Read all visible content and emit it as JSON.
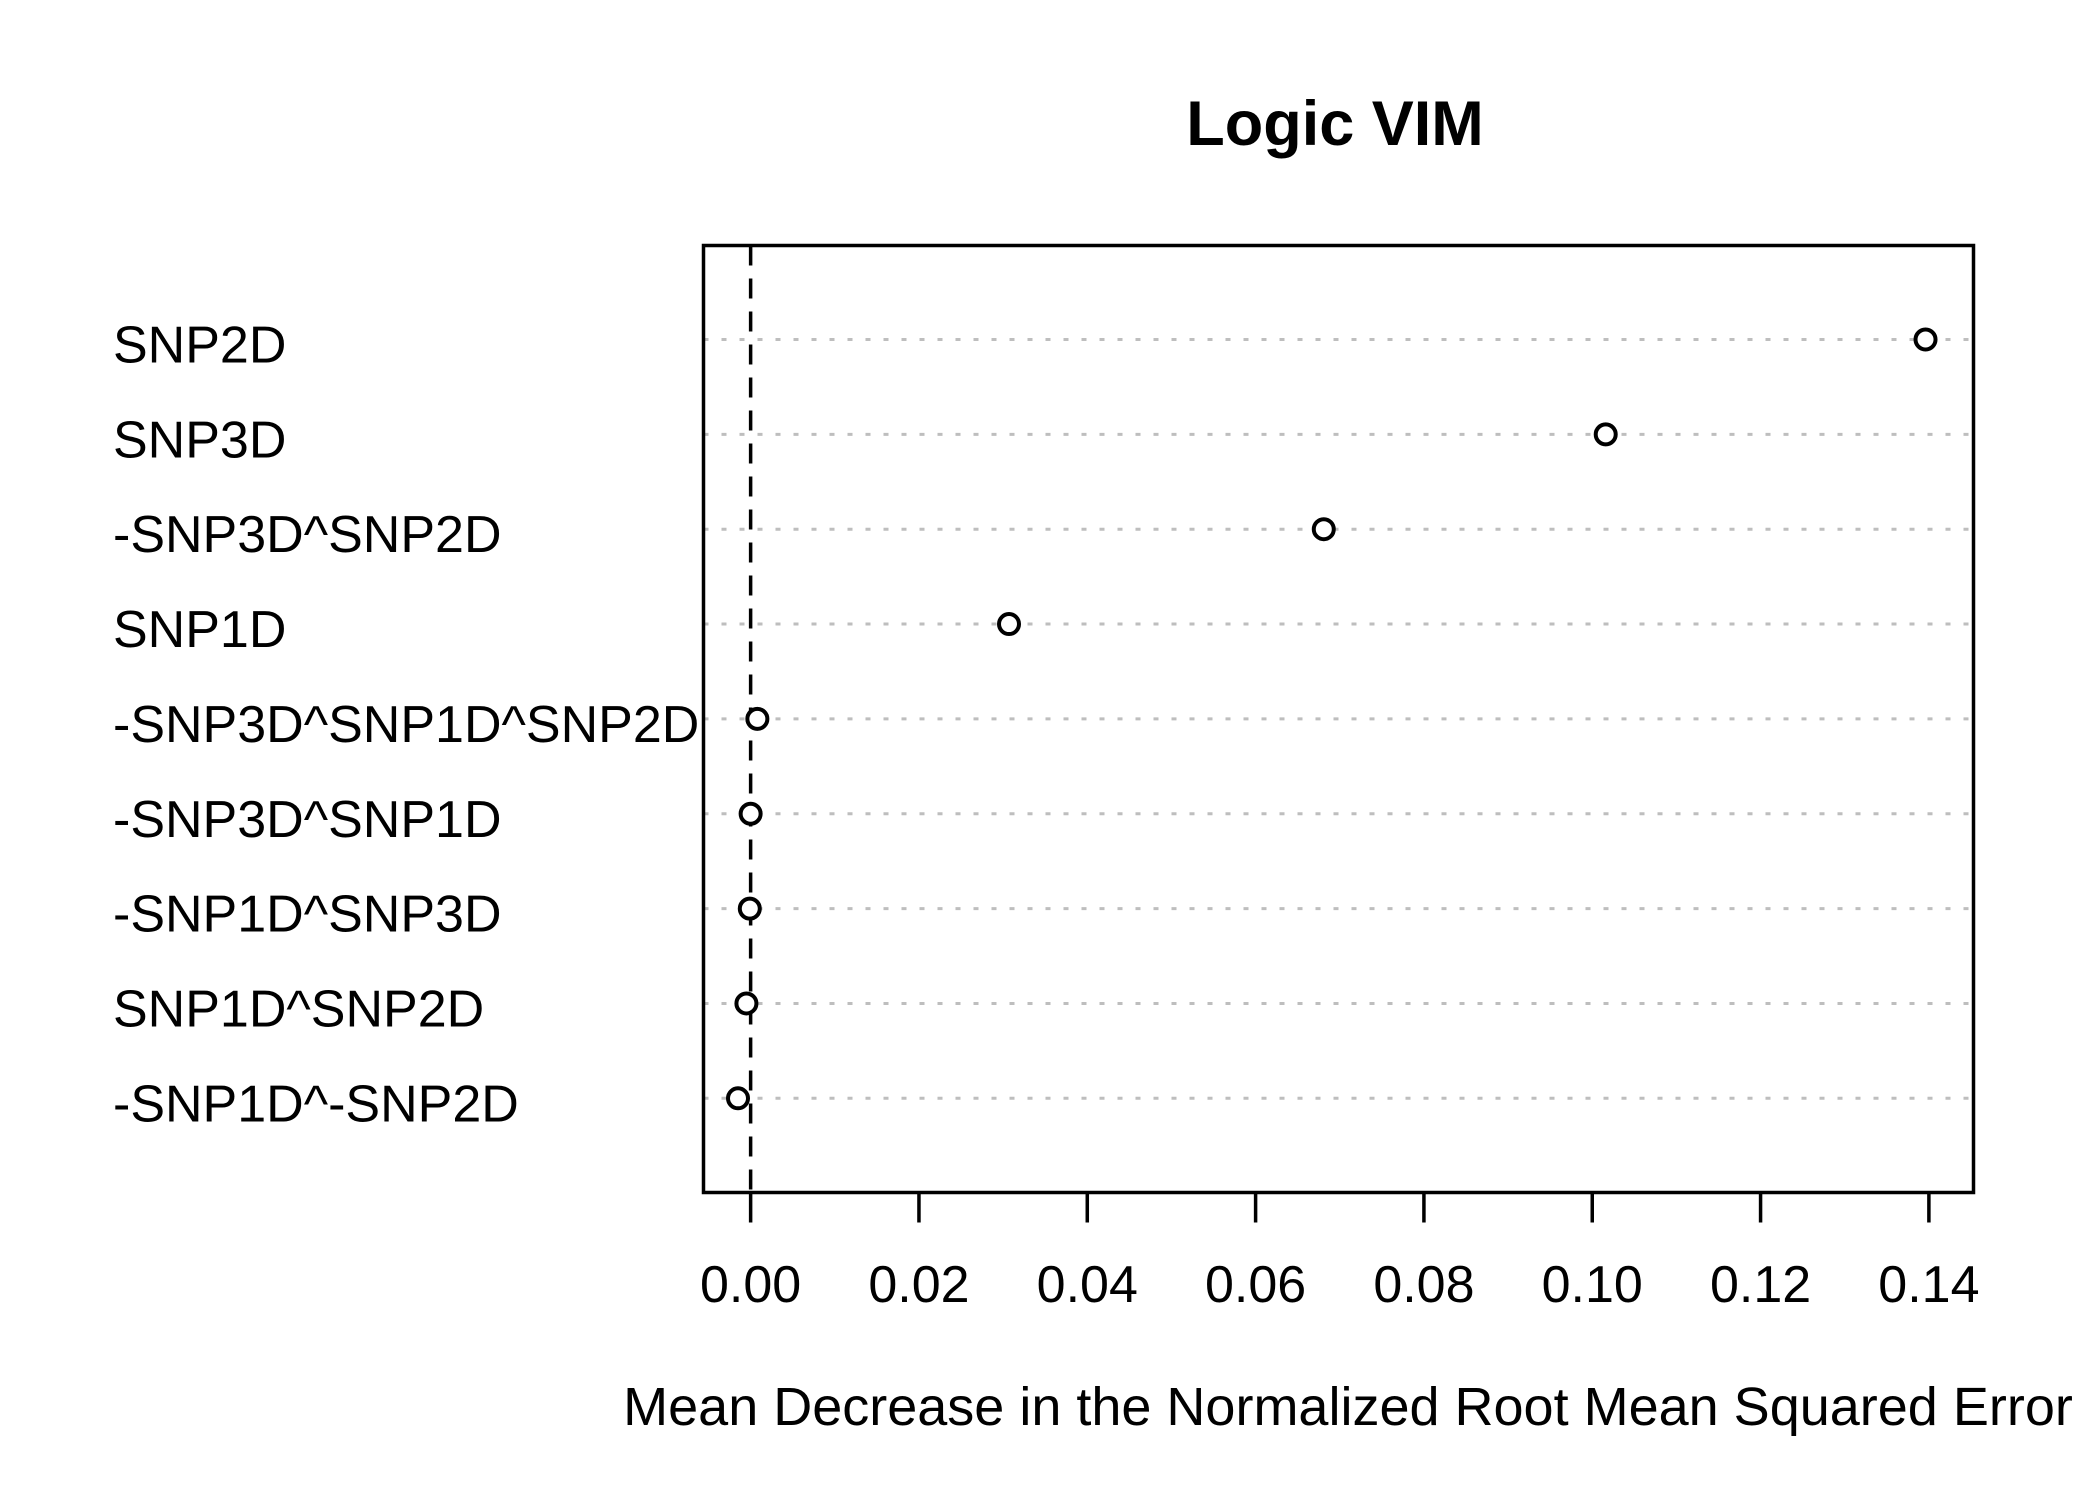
{
  "chart_data": {
    "type": "scatter",
    "subtype": "dotchart",
    "title": "Logic VIM",
    "xlabel": "Mean Decrease in the Normalized Root Mean Squared Error",
    "ylabel": "",
    "categories": [
      "SNP2D",
      "SNP3D",
      "-SNP3D^SNP2D",
      "SNP1D",
      "-SNP3D^SNP1D^SNP2D",
      "-SNP3D^SNP1D",
      "-SNP1D^SNP3D",
      "SNP1D^SNP2D",
      "-SNP1D^-SNP2D"
    ],
    "values": [
      0.1396,
      0.1016,
      0.0681,
      0.0307,
      0.0008,
      0.0,
      -0.0001,
      -0.0005,
      -0.0015
    ],
    "xlim": [
      -0.0056,
      0.1453
    ],
    "x_ticks": {
      "values": [
        0.0,
        0.02,
        0.04,
        0.06,
        0.08,
        0.1,
        0.12,
        0.14
      ],
      "labels": [
        "0.00",
        "0.02",
        "0.04",
        "0.06",
        "0.08",
        "0.10",
        "0.12",
        "0.14"
      ]
    },
    "reference_line": {
      "x": 0.0,
      "style": "dashed"
    },
    "grid": {
      "horizontal": "dotted",
      "vertical": "none"
    },
    "legend": "none",
    "marker": "open-circle",
    "colors": {
      "foreground": "#000000",
      "grid": "#bebebe",
      "background": "#ffffff",
      "marker_fill": "#ffffff"
    }
  }
}
